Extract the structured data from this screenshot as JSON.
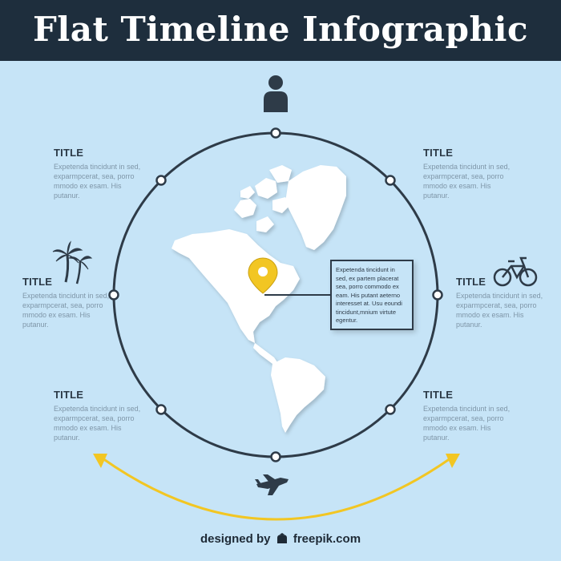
{
  "header": {
    "title": "Flat Timeline Infographic"
  },
  "blocks": [
    {
      "title": "TITLE",
      "text": "Expetenda tincidunt in sed, exparmpcerat, sea, porro mmodo ex esam. His putanur."
    },
    {
      "title": "TITLE",
      "text": "Expetenda tincidunt in sed, exparmpcerat, sea, porro mmodo ex esam. His putanur."
    },
    {
      "title": "TITLE",
      "text": "Expetenda tincidunt in sed, exparmpcerat, sea, porro mmodo ex esam. His putanur."
    },
    {
      "title": "TITLE",
      "text": "Expetenda tincidunt in sed, exparmpcerat, sea, porro mmodo ex esam. His putanur."
    },
    {
      "title": "TITLE",
      "text": "Expetenda tincidunt in sed, exparmpcerat, sea, porro mmodo ex esam. His putanur."
    },
    {
      "title": "TITLE",
      "text": "Expetenda tincidunt in sed, exparmpcerat, sea, porro mmodo ex esam. His putanur."
    }
  ],
  "callout": {
    "text": "Expetenda tincidunt in sed, ex partem placerat sea, porro commodo ex eam. His putant aeterno interesset at. Usu eoundi tincidunt,mnium virtute egentur."
  },
  "footer": {
    "credit_prefix": "designed by",
    "credit_brand": "freepik.com"
  },
  "icons": [
    "person-icon",
    "palm-trees-icon",
    "bicycle-icon",
    "airplane-icon",
    "location-pin-icon",
    "world-map-icon",
    "double-arrow-icon"
  ],
  "colors": {
    "background": "#c6e4f7",
    "header": "#1e2e3d",
    "circle": "#2e3b48",
    "accent": "#f2c623",
    "map": "#ffffff"
  }
}
